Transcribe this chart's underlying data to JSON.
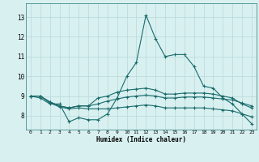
{
  "xlabel": "Humidex (Indice chaleur)",
  "bg_color": "#d8f0f0",
  "grid_color": "#b8d8d8",
  "line_color": "#1a6b6b",
  "x_ticks": [
    0,
    1,
    2,
    3,
    4,
    5,
    6,
    7,
    8,
    9,
    10,
    11,
    12,
    13,
    14,
    15,
    16,
    17,
    18,
    19,
    20,
    21,
    22,
    23
  ],
  "y_ticks": [
    8,
    9,
    10,
    11,
    12,
    13
  ],
  "xlim": [
    -0.5,
    23.5
  ],
  "ylim": [
    7.3,
    13.7
  ],
  "series": [
    [
      9.0,
      8.9,
      8.6,
      8.6,
      7.7,
      7.9,
      7.8,
      7.8,
      8.1,
      8.9,
      10.0,
      10.7,
      13.1,
      11.9,
      11.0,
      11.1,
      11.1,
      10.5,
      9.5,
      9.4,
      8.9,
      8.6,
      8.1,
      7.6
    ],
    [
      9.0,
      9.0,
      8.7,
      8.5,
      8.4,
      8.5,
      8.5,
      8.9,
      9.0,
      9.2,
      9.3,
      9.35,
      9.4,
      9.3,
      9.1,
      9.1,
      9.15,
      9.15,
      9.15,
      9.1,
      9.0,
      8.9,
      8.6,
      8.4
    ],
    [
      9.0,
      9.0,
      8.7,
      8.5,
      8.4,
      8.5,
      8.5,
      8.6,
      8.75,
      8.85,
      8.95,
      9.0,
      9.05,
      9.0,
      8.9,
      8.9,
      8.95,
      8.95,
      8.95,
      8.9,
      8.85,
      8.8,
      8.65,
      8.5
    ],
    [
      9.0,
      9.0,
      8.65,
      8.45,
      8.35,
      8.4,
      8.35,
      8.35,
      8.35,
      8.4,
      8.45,
      8.5,
      8.55,
      8.5,
      8.4,
      8.4,
      8.4,
      8.4,
      8.4,
      8.35,
      8.3,
      8.25,
      8.1,
      7.95
    ]
  ]
}
